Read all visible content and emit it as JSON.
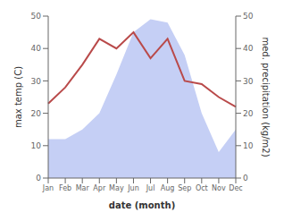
{
  "chart_data": {
    "type": "line",
    "xlabel": "date (month)",
    "ylabel": "max temp (C)",
    "y2label": "med. precipitation (kg/m2)",
    "categories": [
      "Jan",
      "Feb",
      "Mar",
      "Apr",
      "May",
      "Jun",
      "Jul",
      "Aug",
      "Sep",
      "Oct",
      "Nov",
      "Dec"
    ],
    "series": [
      {
        "type": "area",
        "color": "#c5cff5",
        "values": [
          12,
          12,
          15,
          20,
          32,
          45,
          49,
          48,
          38,
          20,
          8,
          15
        ]
      },
      {
        "type": "line",
        "color": "#b94a4a",
        "values": [
          23,
          28,
          35,
          43,
          40,
          45,
          37,
          43,
          30,
          29,
          25,
          22
        ]
      }
    ],
    "ylim": [
      0,
      50
    ],
    "yticks": [
      0,
      10,
      20,
      30,
      40,
      50
    ],
    "y2lim": [
      0,
      50
    ],
    "y2ticks": [
      0,
      10,
      20,
      30,
      40,
      50
    ],
    "grid": false
  }
}
